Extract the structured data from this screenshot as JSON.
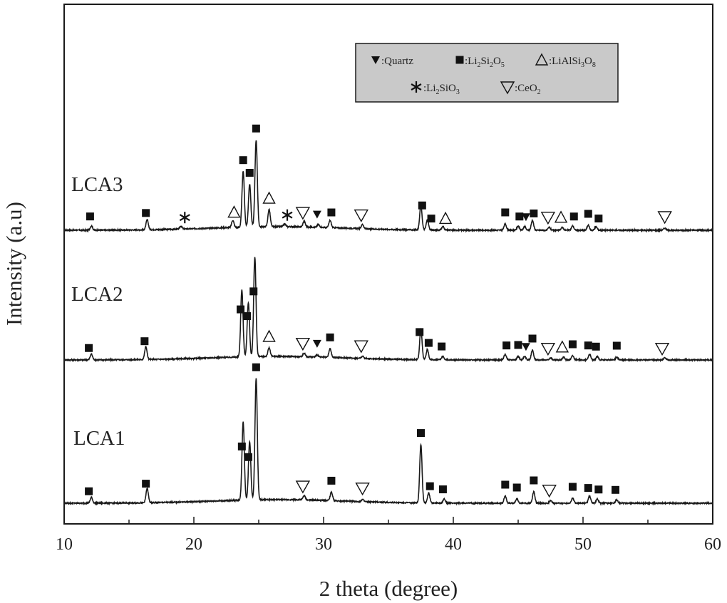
{
  "chart_data": {
    "type": "line",
    "xlabel": "2 theta (degree)",
    "ylabel": "Intensity (a.u)",
    "xlim": [
      10,
      60
    ],
    "xticks": [
      10,
      20,
      30,
      40,
      50,
      60
    ],
    "yticks_shown": false,
    "legend": {
      "placement": "top-right",
      "background": "#c9c9c9",
      "entries": [
        {
          "symbol": "filled-down-triangle",
          "label": ":Quartz"
        },
        {
          "symbol": "filled-square",
          "label": ":Li2Si2O5",
          "text": ":Li",
          "sub1": "2",
          "mid": "Si",
          "sub2": "2",
          "end": "O",
          "sub3": "5"
        },
        {
          "symbol": "open-triangle",
          "label": ":LiAlSi3O8",
          "text": ":LiAlSi",
          "sub1": "3",
          "mid": "O",
          "sub2": "8"
        },
        {
          "symbol": "asterisk",
          "label": ":Li2SiO3",
          "text": ":Li",
          "sub1": "2",
          "mid": "SiO",
          "sub2": "3"
        },
        {
          "symbol": "open-down-triangle",
          "label": ":CeO2",
          "text": ":CeO",
          "sub1": "2"
        }
      ]
    },
    "line_color": "#1a1a1a",
    "series": [
      {
        "name": "LCA3",
        "peaks": [
          [
            12.1,
            6
          ],
          [
            16.4,
            14
          ],
          [
            19.0,
            4
          ],
          [
            23.0,
            10
          ],
          [
            23.8,
            78
          ],
          [
            24.3,
            60
          ],
          [
            24.8,
            122
          ],
          [
            25.8,
            24
          ],
          [
            27.0,
            4
          ],
          [
            28.5,
            8
          ],
          [
            29.6,
            4
          ],
          [
            30.5,
            10
          ],
          [
            33.0,
            6
          ],
          [
            37.5,
            34
          ],
          [
            38.0,
            14
          ],
          [
            39.2,
            5
          ],
          [
            44.0,
            9
          ],
          [
            45.0,
            6
          ],
          [
            45.5,
            5
          ],
          [
            46.1,
            14
          ],
          [
            47.4,
            4
          ],
          [
            48.4,
            4
          ],
          [
            49.2,
            6
          ],
          [
            50.4,
            7
          ],
          [
            51.0,
            5
          ],
          [
            56.3,
            3
          ]
        ],
        "markers": [
          {
            "x": 12.0,
            "symbol": "filled-square"
          },
          {
            "x": 16.3,
            "symbol": "filled-square"
          },
          {
            "x": 19.3,
            "symbol": "asterisk"
          },
          {
            "x": 23.1,
            "symbol": "open-triangle"
          },
          {
            "x": 23.8,
            "symbol": "filled-square"
          },
          {
            "x": 24.3,
            "symbol": "filled-square"
          },
          {
            "x": 24.8,
            "symbol": "filled-square"
          },
          {
            "x": 25.8,
            "symbol": "open-triangle"
          },
          {
            "x": 27.2,
            "symbol": "asterisk"
          },
          {
            "x": 28.4,
            "symbol": "open-down-triangle"
          },
          {
            "x": 29.5,
            "symbol": "filled-down-triangle"
          },
          {
            "x": 30.6,
            "symbol": "filled-square"
          },
          {
            "x": 32.9,
            "symbol": "open-down-triangle"
          },
          {
            "x": 37.6,
            "symbol": "filled-square"
          },
          {
            "x": 38.3,
            "symbol": "filled-square"
          },
          {
            "x": 39.4,
            "symbol": "open-triangle"
          },
          {
            "x": 44.0,
            "symbol": "filled-square"
          },
          {
            "x": 45.1,
            "symbol": "filled-square"
          },
          {
            "x": 45.6,
            "symbol": "filled-down-triangle"
          },
          {
            "x": 46.2,
            "symbol": "filled-square"
          },
          {
            "x": 47.3,
            "symbol": "open-down-triangle"
          },
          {
            "x": 48.3,
            "symbol": "open-triangle"
          },
          {
            "x": 49.3,
            "symbol": "filled-square"
          },
          {
            "x": 50.4,
            "symbol": "filled-square"
          },
          {
            "x": 51.2,
            "symbol": "filled-square"
          },
          {
            "x": 56.3,
            "symbol": "open-down-triangle"
          }
        ]
      },
      {
        "name": "LCA2",
        "peaks": [
          [
            12.1,
            8
          ],
          [
            16.3,
            18
          ],
          [
            23.7,
            94
          ],
          [
            24.2,
            76
          ],
          [
            24.7,
            140
          ],
          [
            25.8,
            12
          ],
          [
            28.5,
            5
          ],
          [
            29.5,
            3
          ],
          [
            30.5,
            12
          ],
          [
            33.0,
            3
          ],
          [
            37.5,
            42
          ],
          [
            38.0,
            14
          ],
          [
            39.2,
            5
          ],
          [
            44.0,
            8
          ],
          [
            45.0,
            5
          ],
          [
            45.5,
            5
          ],
          [
            46.1,
            14
          ],
          [
            47.5,
            3
          ],
          [
            48.5,
            4
          ],
          [
            49.2,
            6
          ],
          [
            50.5,
            8
          ],
          [
            51.1,
            5
          ],
          [
            52.6,
            4
          ],
          [
            56.3,
            3
          ]
        ],
        "markers": [
          {
            "x": 11.9,
            "symbol": "filled-square"
          },
          {
            "x": 16.2,
            "symbol": "filled-square"
          },
          {
            "x": 23.6,
            "symbol": "filled-square"
          },
          {
            "x": 24.1,
            "symbol": "filled-square"
          },
          {
            "x": 24.6,
            "symbol": "filled-square"
          },
          {
            "x": 25.8,
            "symbol": "open-triangle"
          },
          {
            "x": 28.4,
            "symbol": "open-down-triangle"
          },
          {
            "x": 29.5,
            "symbol": "filled-down-triangle"
          },
          {
            "x": 30.5,
            "symbol": "filled-square"
          },
          {
            "x": 32.9,
            "symbol": "open-down-triangle"
          },
          {
            "x": 37.4,
            "symbol": "filled-square"
          },
          {
            "x": 38.1,
            "symbol": "filled-square"
          },
          {
            "x": 39.1,
            "symbol": "filled-square"
          },
          {
            "x": 44.1,
            "symbol": "filled-square"
          },
          {
            "x": 45.0,
            "symbol": "filled-square"
          },
          {
            "x": 45.6,
            "symbol": "filled-down-triangle"
          },
          {
            "x": 46.1,
            "symbol": "filled-square"
          },
          {
            "x": 47.3,
            "symbol": "open-down-triangle"
          },
          {
            "x": 48.4,
            "symbol": "open-triangle"
          },
          {
            "x": 49.2,
            "symbol": "filled-square"
          },
          {
            "x": 50.4,
            "symbol": "filled-square"
          },
          {
            "x": 51.0,
            "symbol": "filled-square"
          },
          {
            "x": 52.6,
            "symbol": "filled-square"
          },
          {
            "x": 56.1,
            "symbol": "open-down-triangle"
          }
        ]
      },
      {
        "name": "LCA1",
        "peaks": [
          [
            12.1,
            8
          ],
          [
            16.4,
            20
          ],
          [
            23.8,
            110
          ],
          [
            24.3,
            82
          ],
          [
            24.8,
            170
          ],
          [
            28.5,
            6
          ],
          [
            30.6,
            12
          ],
          [
            33.0,
            3
          ],
          [
            37.5,
            82
          ],
          [
            38.1,
            14
          ],
          [
            39.3,
            6
          ],
          [
            44.0,
            10
          ],
          [
            44.9,
            6
          ],
          [
            46.2,
            16
          ],
          [
            47.5,
            4
          ],
          [
            49.2,
            7
          ],
          [
            50.5,
            10
          ],
          [
            51.1,
            6
          ],
          [
            52.6,
            5
          ]
        ],
        "markers": [
          {
            "x": 11.9,
            "symbol": "filled-square"
          },
          {
            "x": 16.3,
            "symbol": "filled-square"
          },
          {
            "x": 23.7,
            "symbol": "filled-square"
          },
          {
            "x": 24.2,
            "symbol": "filled-square"
          },
          {
            "x": 24.8,
            "symbol": "filled-square"
          },
          {
            "x": 28.4,
            "symbol": "open-down-triangle"
          },
          {
            "x": 30.6,
            "symbol": "filled-square"
          },
          {
            "x": 33.0,
            "symbol": "open-down-triangle"
          },
          {
            "x": 37.5,
            "symbol": "filled-square"
          },
          {
            "x": 38.2,
            "symbol": "filled-square"
          },
          {
            "x": 39.2,
            "symbol": "filled-square"
          },
          {
            "x": 44.0,
            "symbol": "filled-square"
          },
          {
            "x": 44.9,
            "symbol": "filled-square"
          },
          {
            "x": 46.2,
            "symbol": "filled-square"
          },
          {
            "x": 47.4,
            "symbol": "open-down-triangle"
          },
          {
            "x": 49.2,
            "symbol": "filled-square"
          },
          {
            "x": 50.4,
            "symbol": "filled-square"
          },
          {
            "x": 51.2,
            "symbol": "filled-square"
          },
          {
            "x": 52.5,
            "symbol": "filled-square"
          }
        ]
      }
    ]
  }
}
